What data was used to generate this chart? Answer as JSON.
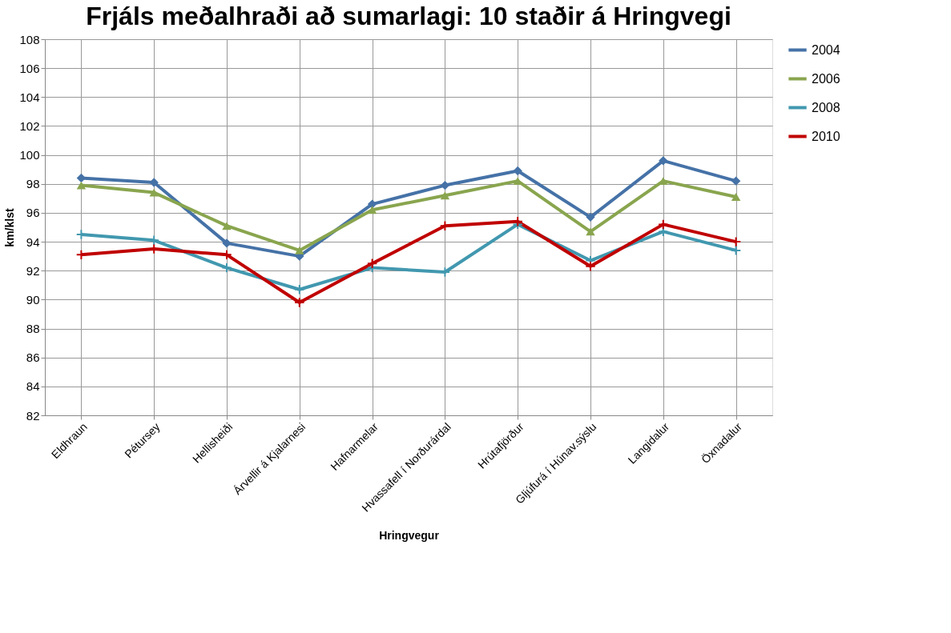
{
  "chart_data": {
    "type": "line",
    "title": "Frjáls meðalhraði að sumarlagi: 10 staðir á Hringvegi",
    "xlabel": "Hringvegur",
    "ylabel": "km/klst",
    "categories": [
      "Eldhraun",
      "Pétursey",
      "Hellisheiði",
      "Árvellir á Kjalarnesi",
      "Hafnarmelar",
      "Hvassafell í Norðurárdal",
      "Hrútafjörður",
      "Gljúfurá í Húnav.sýslu",
      "Langidalur",
      "Öxnadalur"
    ],
    "series": [
      {
        "name": "2004",
        "color": "#4572a7",
        "marker": "diamond",
        "values": [
          98.4,
          98.1,
          93.9,
          93.0,
          96.6,
          97.9,
          98.9,
          95.7,
          99.6,
          98.2
        ]
      },
      {
        "name": "2006",
        "color": "#89a54e",
        "marker": "triangle",
        "values": [
          97.9,
          97.4,
          95.1,
          93.4,
          96.2,
          97.2,
          98.2,
          94.7,
          98.2,
          97.1
        ]
      },
      {
        "name": "2008",
        "color": "#4198af",
        "marker": "cross",
        "values": [
          94.5,
          94.1,
          92.2,
          90.7,
          92.2,
          91.9,
          95.2,
          92.7,
          94.7,
          93.4
        ]
      },
      {
        "name": "2010",
        "color": "#c00000",
        "marker": "cross",
        "values": [
          93.1,
          93.5,
          93.1,
          89.8,
          92.5,
          95.1,
          95.4,
          92.3,
          95.2,
          94.0
        ]
      }
    ],
    "ylim": [
      82,
      108
    ],
    "yticks": [
      82,
      84,
      86,
      88,
      90,
      92,
      94,
      96,
      98,
      100,
      102,
      104,
      106,
      108
    ],
    "grid": true,
    "legend": "right"
  }
}
